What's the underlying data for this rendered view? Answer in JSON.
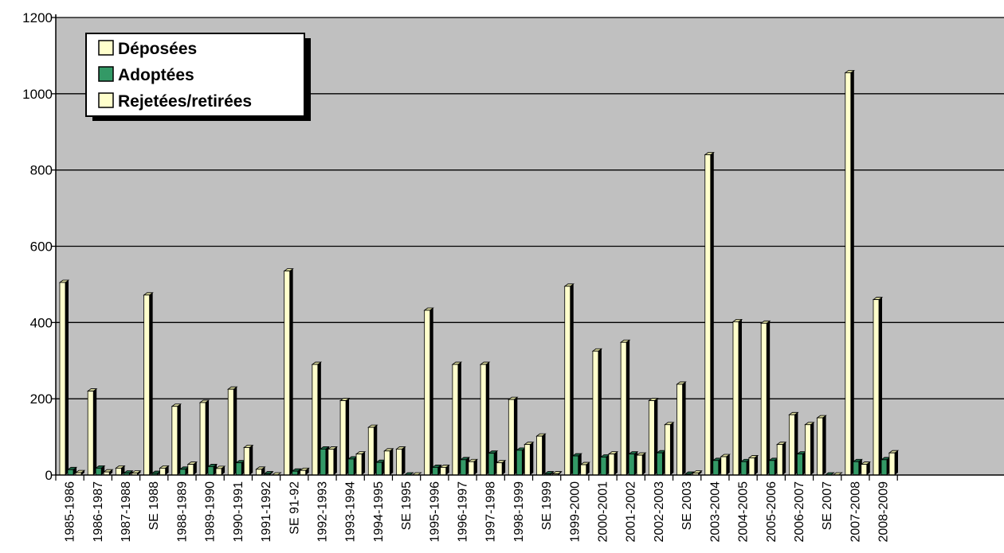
{
  "chart_data": {
    "type": "bar",
    "title": "",
    "xlabel": "",
    "ylabel": "",
    "ylim": [
      0,
      1200
    ],
    "yticks": [
      0,
      200,
      400,
      600,
      800,
      1000,
      1200
    ],
    "grid": true,
    "legend_position": "top-left",
    "plot_background": "#C0C0C0",
    "categories": [
      "1985-1986",
      "1986-1987",
      "1987-1988",
      "SE 1988",
      "1988-1989",
      "1989-1990",
      "1990-1991",
      "1991-1992",
      "SE 91-92",
      "1992-1993",
      "1993-1994",
      "1994-1995",
      "SE 1995",
      "1995-1996",
      "1996-1997",
      "1997-1998",
      "1998-1999",
      "SE 1999",
      "1999-2000",
      "2000-2001",
      "2001-2002",
      "2002-2003",
      "SE 2003",
      "2003-2004",
      "2004-2005",
      "2005-2006",
      "2006-2007",
      "SE 2007",
      "2007-2008",
      "2008-2009"
    ],
    "series": [
      {
        "name": "Déposées",
        "color": "#FFFFCC",
        "values": [
          505,
          220,
          18,
          472,
          180,
          190,
          225,
          15,
          535,
          290,
          195,
          125,
          68,
          432,
          290,
          290,
          198,
          102,
          495,
          325,
          348,
          195,
          238,
          840,
          402,
          398,
          158,
          150,
          1055,
          460
        ]
      },
      {
        "name": "Adoptées",
        "color": "#339966",
        "values": [
          14,
          18,
          5,
          4,
          15,
          22,
          32,
          3,
          10,
          68,
          42,
          33,
          0,
          20,
          40,
          57,
          65,
          3,
          50,
          47,
          55,
          58,
          2,
          38,
          35,
          38,
          55,
          0,
          35,
          40
        ]
      },
      {
        "name": "Rejetées/retirées",
        "color": "#FFFFCC",
        "values": [
          6,
          8,
          5,
          18,
          28,
          17,
          72,
          0,
          12,
          68,
          55,
          63,
          0,
          20,
          35,
          32,
          80,
          3,
          27,
          55,
          52,
          132,
          5,
          48,
          45,
          80,
          132,
          0,
          28,
          58
        ]
      }
    ]
  }
}
